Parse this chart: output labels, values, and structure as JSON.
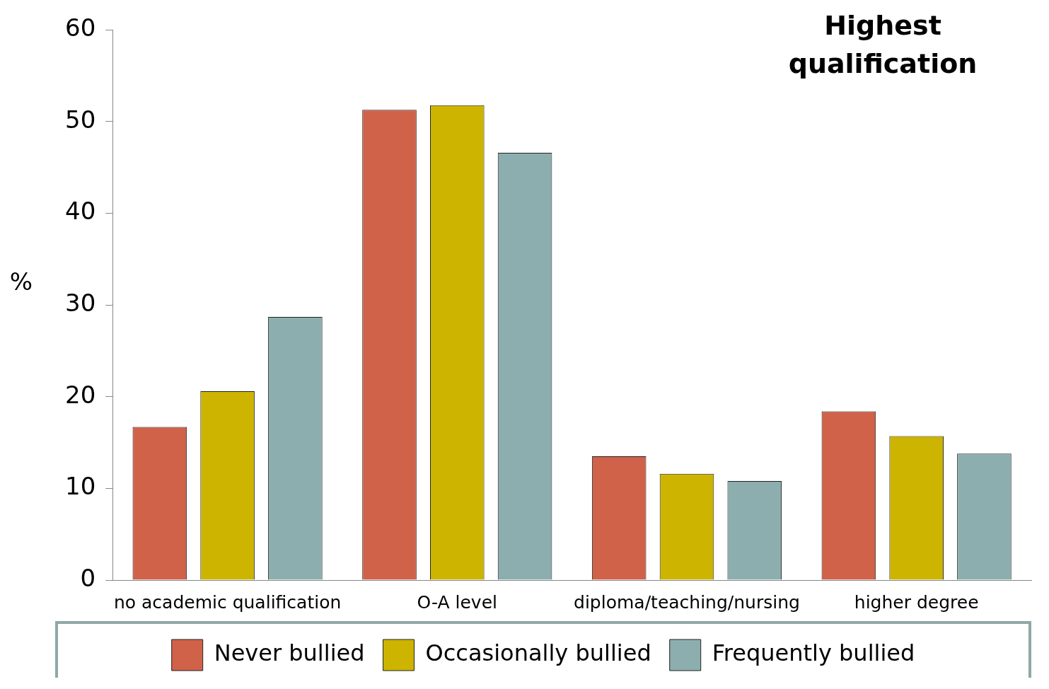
{
  "chart_data": {
    "type": "bar",
    "title": "Highest qualification",
    "ylabel": "%",
    "categories": [
      "no academic qualification",
      "O-A level",
      "diploma/teaching/nursing",
      "higher degree"
    ],
    "series": [
      {
        "name": "Never bullied",
        "color": "#d0624a",
        "values": [
          16.7,
          51.3,
          13.5,
          18.4
        ]
      },
      {
        "name": "Occasionally bullied",
        "color": "#ccb400",
        "values": [
          20.6,
          51.8,
          11.6,
          15.7
        ]
      },
      {
        "name": "Frequently bullied",
        "color": "#8daeae",
        "values": [
          28.7,
          46.6,
          10.8,
          13.8
        ]
      }
    ],
    "ylim": [
      0,
      60
    ],
    "yticks": [
      0,
      10,
      20,
      30,
      40,
      50,
      60
    ],
    "grid": false,
    "legend": "bottom"
  }
}
